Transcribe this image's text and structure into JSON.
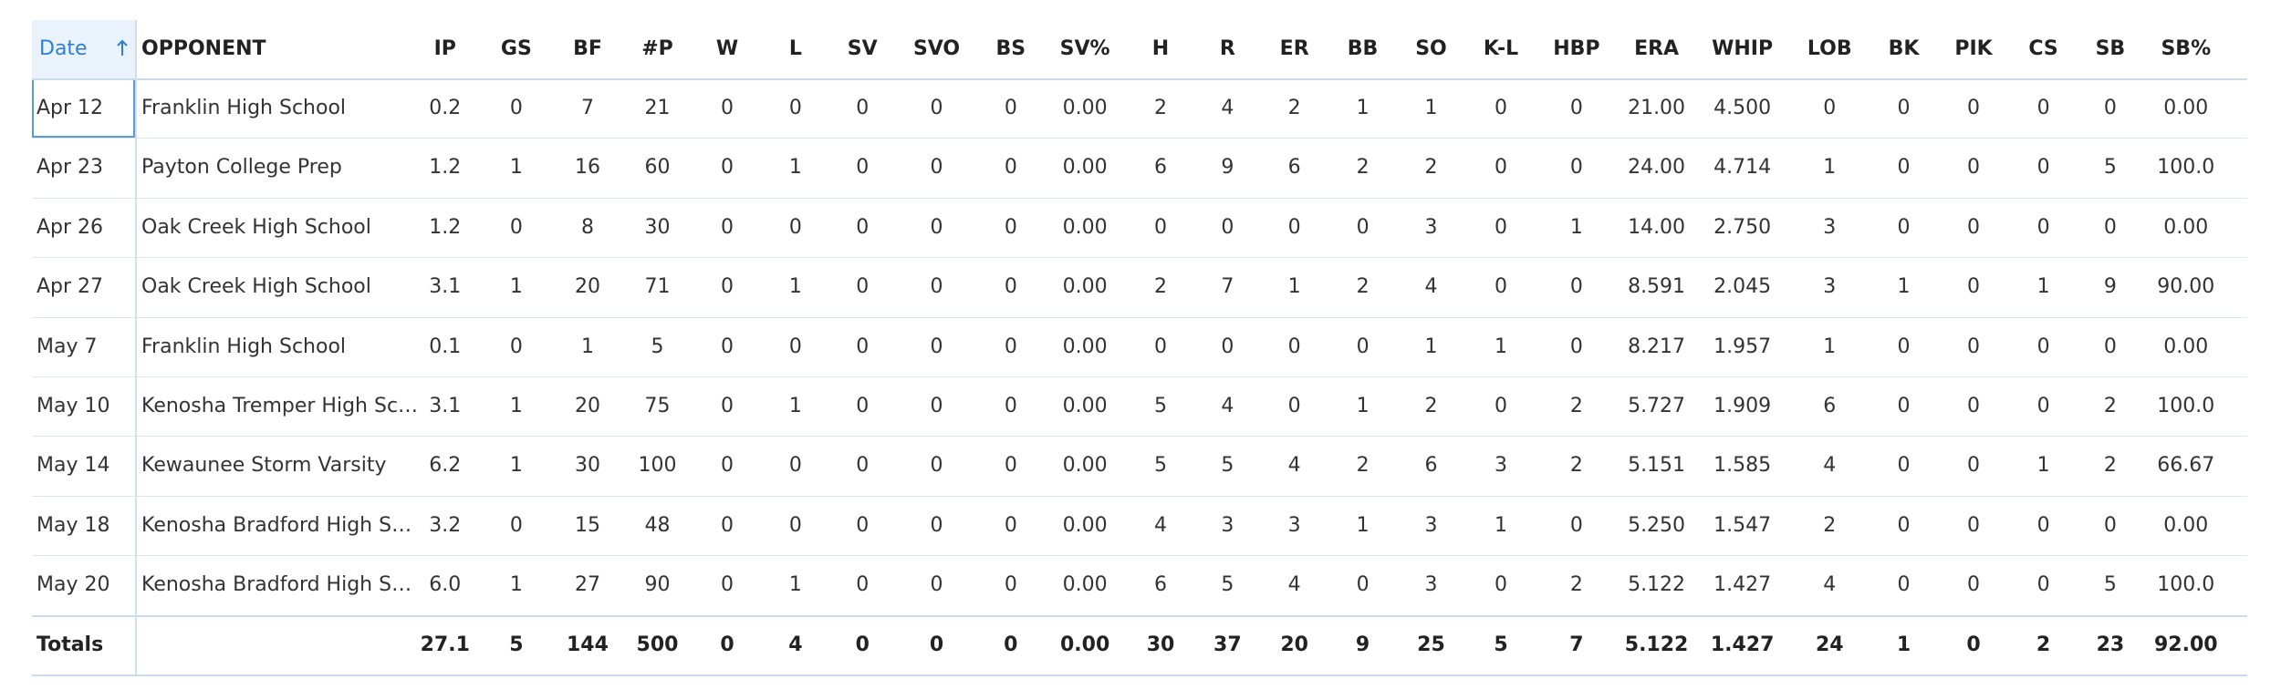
{
  "table": {
    "columns": [
      "Date",
      "OPPONENT",
      "IP",
      "GS",
      "BF",
      "#P",
      "W",
      "L",
      "SV",
      "SVO",
      "BS",
      "SV%",
      "H",
      "R",
      "ER",
      "BB",
      "SO",
      "K-L",
      "HBP",
      "ERA",
      "WHIP",
      "LOB",
      "BK",
      "PIK",
      "CS",
      "SB",
      "SB%"
    ],
    "rows": [
      [
        "Apr 12",
        "Franklin High School",
        "0.2",
        "0",
        "7",
        "21",
        "0",
        "0",
        "0",
        "0",
        "0",
        "0.00",
        "2",
        "4",
        "2",
        "1",
        "1",
        "0",
        "0",
        "21.00",
        "4.500",
        "0",
        "0",
        "0",
        "0",
        "0",
        "0.00"
      ],
      [
        "Apr 23",
        "Payton College Prep",
        "1.2",
        "1",
        "16",
        "60",
        "0",
        "1",
        "0",
        "0",
        "0",
        "0.00",
        "6",
        "9",
        "6",
        "2",
        "2",
        "0",
        "0",
        "24.00",
        "4.714",
        "1",
        "0",
        "0",
        "0",
        "5",
        "100.0"
      ],
      [
        "Apr 26",
        "Oak Creek High School",
        "1.2",
        "0",
        "8",
        "30",
        "0",
        "0",
        "0",
        "0",
        "0",
        "0.00",
        "0",
        "0",
        "0",
        "0",
        "3",
        "0",
        "1",
        "14.00",
        "2.750",
        "3",
        "0",
        "0",
        "0",
        "0",
        "0.00"
      ],
      [
        "Apr 27",
        "Oak Creek High School",
        "3.1",
        "1",
        "20",
        "71",
        "0",
        "1",
        "0",
        "0",
        "0",
        "0.00",
        "2",
        "7",
        "1",
        "2",
        "4",
        "0",
        "0",
        "8.591",
        "2.045",
        "3",
        "1",
        "0",
        "1",
        "9",
        "90.00"
      ],
      [
        "May 7",
        "Franklin High School",
        "0.1",
        "0",
        "1",
        "5",
        "0",
        "0",
        "0",
        "0",
        "0",
        "0.00",
        "0",
        "0",
        "0",
        "0",
        "1",
        "1",
        "0",
        "8.217",
        "1.957",
        "1",
        "0",
        "0",
        "0",
        "0",
        "0.00"
      ],
      [
        "May 10",
        "Kenosha Tremper High Sc…",
        "3.1",
        "1",
        "20",
        "75",
        "0",
        "1",
        "0",
        "0",
        "0",
        "0.00",
        "5",
        "4",
        "0",
        "1",
        "2",
        "0",
        "2",
        "5.727",
        "1.909",
        "6",
        "0",
        "0",
        "0",
        "2",
        "100.0"
      ],
      [
        "May 14",
        "Kewaunee Storm Varsity",
        "6.2",
        "1",
        "30",
        "100",
        "0",
        "0",
        "0",
        "0",
        "0",
        "0.00",
        "5",
        "5",
        "4",
        "2",
        "6",
        "3",
        "2",
        "5.151",
        "1.585",
        "4",
        "0",
        "0",
        "1",
        "2",
        "66.67"
      ],
      [
        "May 18",
        "Kenosha Bradford High S…",
        "3.2",
        "0",
        "15",
        "48",
        "0",
        "0",
        "0",
        "0",
        "0",
        "0.00",
        "4",
        "3",
        "3",
        "1",
        "3",
        "1",
        "0",
        "5.250",
        "1.547",
        "2",
        "0",
        "0",
        "0",
        "0",
        "0.00"
      ],
      [
        "May 20",
        "Kenosha Bradford High S…",
        "6.0",
        "1",
        "27",
        "90",
        "0",
        "1",
        "0",
        "0",
        "0",
        "0.00",
        "6",
        "5",
        "4",
        "0",
        "3",
        "0",
        "2",
        "5.122",
        "1.427",
        "4",
        "0",
        "0",
        "0",
        "5",
        "100.0"
      ]
    ],
    "totals_label": "Totals",
    "totals": [
      "27.1",
      "5",
      "144",
      "500",
      "0",
      "4",
      "0",
      "0",
      "0",
      "0.00",
      "30",
      "37",
      "20",
      "9",
      "25",
      "5",
      "7",
      "5.122",
      "1.427",
      "24",
      "1",
      "0",
      "2",
      "23",
      "92.00"
    ]
  }
}
